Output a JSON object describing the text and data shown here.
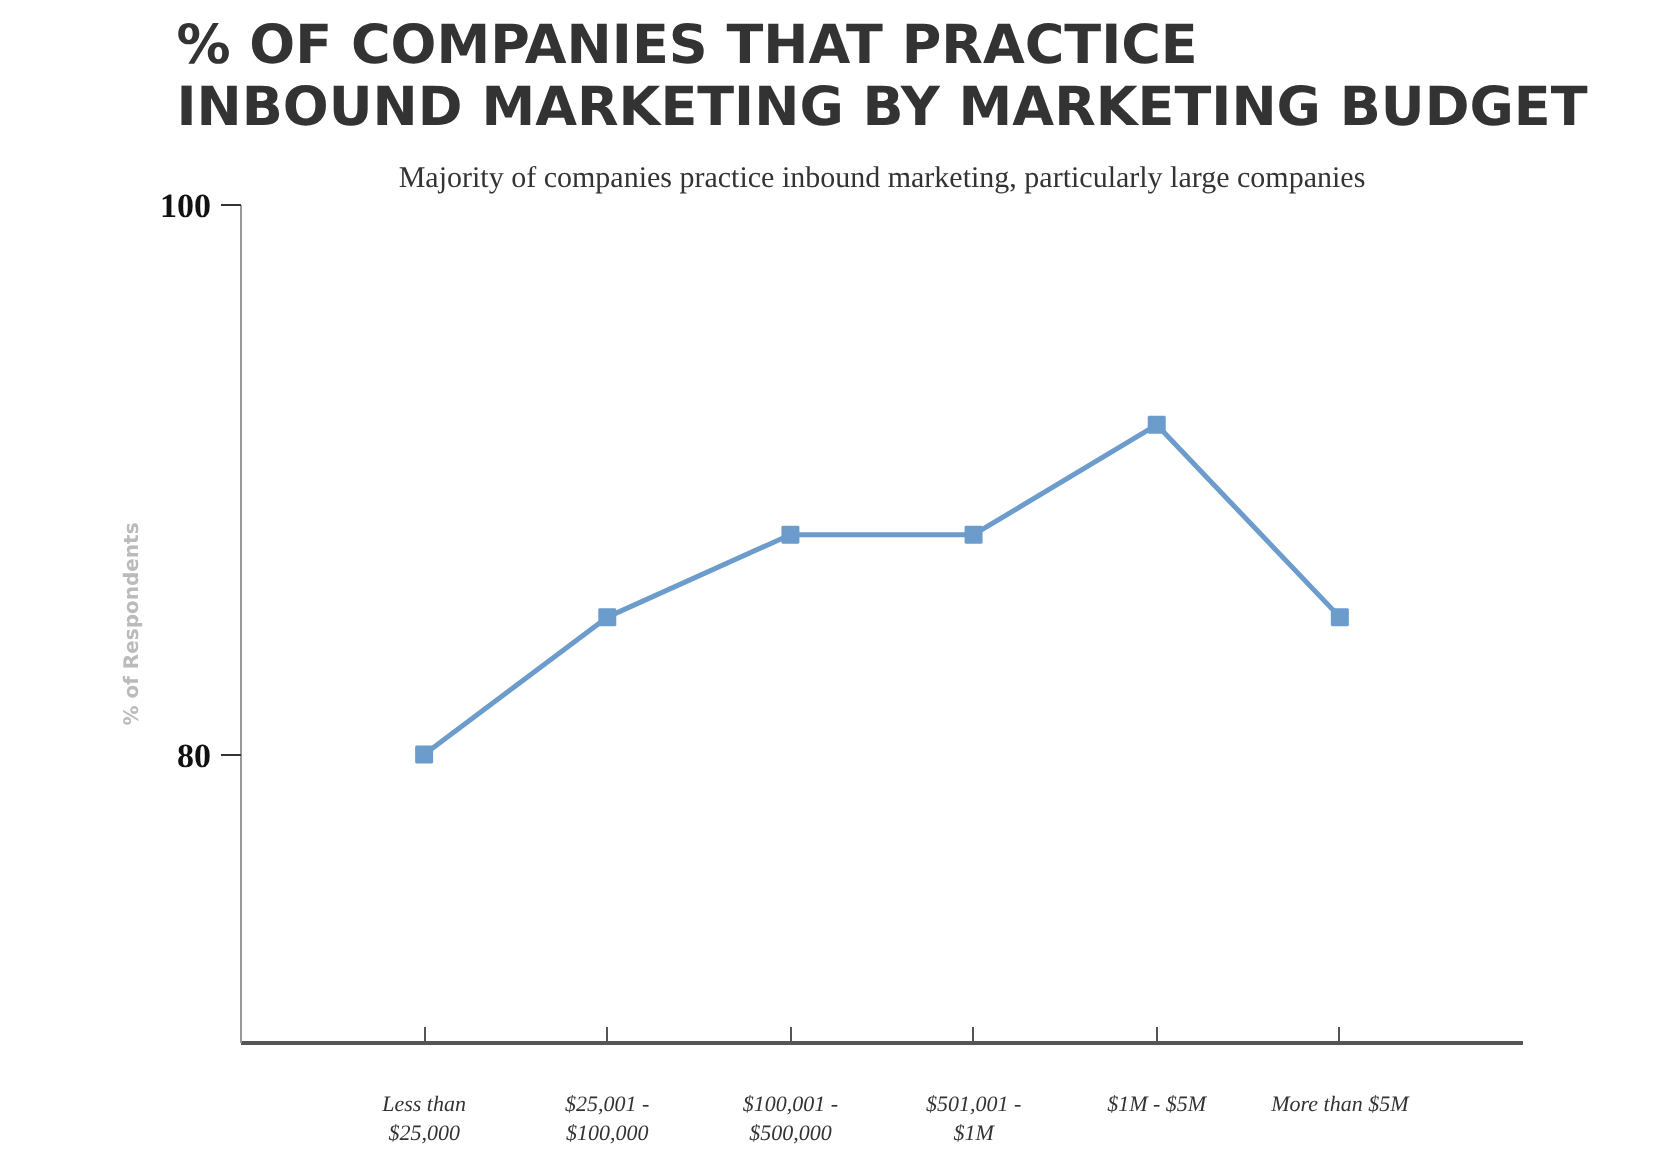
{
  "chart_data": {
    "type": "line",
    "title": "% OF COMPANIES THAT PRACTICE\nINBOUND MARKETING BY MARKETING BUDGET",
    "subtitle": "Majority of companies practice inbound marketing, particularly large companies",
    "ylabel": "% of Respondents",
    "categories": [
      "Less than\n$25,000",
      "$25,001 -\n$100,000",
      "$100,001 -\n$500,000",
      "$501,001 -\n$1M",
      "$1M - $5M",
      "More than $5M"
    ],
    "series": [
      {
        "color": "#6b9ccb",
        "values": [
          80,
          85,
          88,
          88,
          92,
          85
        ]
      }
    ],
    "ylim": [
      69.5,
      100
    ],
    "yticks": [
      80,
      100
    ],
    "grid": false,
    "marker": "square",
    "line_style": "solid"
  }
}
